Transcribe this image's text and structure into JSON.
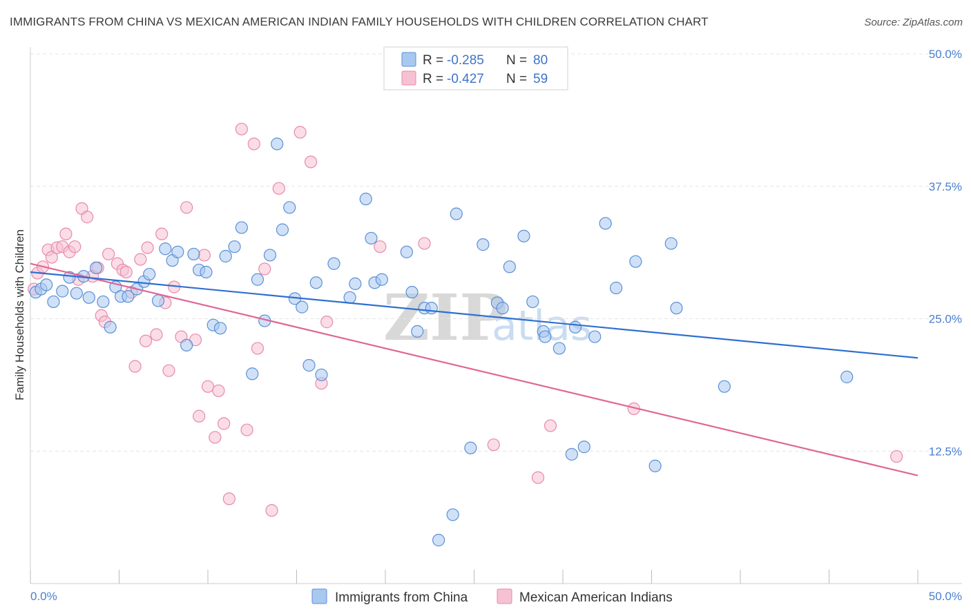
{
  "title": "IMMIGRANTS FROM CHINA VS MEXICAN AMERICAN INDIAN FAMILY HOUSEHOLDS WITH CHILDREN CORRELATION CHART",
  "source": "Source: ZipAtlas.com",
  "watermark": {
    "zip": "ZIP",
    "atlas": "atlas"
  },
  "legend": {
    "rows": [
      {
        "r_label": "R =",
        "r_value": "-0.285",
        "n_label": "N =",
        "n_value": "80"
      },
      {
        "r_label": "R =",
        "r_value": "-0.427",
        "n_label": "N =",
        "n_value": "59"
      }
    ]
  },
  "chart_data": {
    "type": "scatter",
    "xlabel": "",
    "ylabel": "Family Households with Children",
    "xlim": [
      0,
      50
    ],
    "ylim": [
      0,
      50
    ],
    "x_tick_labels": [
      "0.0%",
      "50.0%"
    ],
    "y_ticks": [
      12.5,
      25.0,
      37.5,
      50.0
    ],
    "y_tick_labels": [
      "12.5%",
      "25.0%",
      "37.5%",
      "50.0%"
    ],
    "grid": true,
    "colors": {
      "china_fill": "#a9c8f0",
      "china_stroke": "#5a8fd6",
      "china_line": "#2f6fd0",
      "mex_fill": "#f6c1d3",
      "mex_stroke": "#e889a8",
      "mex_line": "#e06594",
      "grid": "#e4e4e4",
      "axis_label": "#4a7fcf"
    },
    "series": [
      {
        "name": "Immigrants from China",
        "r": -0.285,
        "n": 80,
        "trend": {
          "x": [
            0,
            50
          ],
          "y": [
            29.4,
            21.3
          ]
        },
        "points": [
          [
            0.3,
            27.5
          ],
          [
            0.6,
            27.8
          ],
          [
            0.9,
            28.2
          ],
          [
            1.3,
            26.6
          ],
          [
            1.8,
            27.6
          ],
          [
            2.2,
            28.9
          ],
          [
            2.6,
            27.4
          ],
          [
            3.0,
            29.0
          ],
          [
            3.3,
            27.0
          ],
          [
            3.7,
            29.8
          ],
          [
            4.1,
            26.6
          ],
          [
            4.5,
            24.2
          ],
          [
            4.8,
            28.0
          ],
          [
            5.1,
            27.1
          ],
          [
            5.5,
            27.1
          ],
          [
            6.0,
            27.8
          ],
          [
            6.4,
            28.5
          ],
          [
            6.7,
            29.2
          ],
          [
            7.2,
            26.7
          ],
          [
            7.6,
            31.6
          ],
          [
            8.0,
            30.5
          ],
          [
            8.3,
            31.3
          ],
          [
            8.8,
            22.5
          ],
          [
            9.2,
            31.1
          ],
          [
            9.5,
            29.6
          ],
          [
            9.9,
            29.4
          ],
          [
            10.3,
            24.4
          ],
          [
            10.7,
            24.1
          ],
          [
            11.0,
            30.9
          ],
          [
            11.5,
            31.8
          ],
          [
            11.9,
            33.6
          ],
          [
            12.5,
            19.8
          ],
          [
            12.8,
            28.7
          ],
          [
            13.2,
            24.8
          ],
          [
            13.5,
            31.0
          ],
          [
            13.9,
            41.5
          ],
          [
            14.2,
            33.4
          ],
          [
            14.6,
            35.5
          ],
          [
            14.9,
            26.9
          ],
          [
            15.3,
            26.1
          ],
          [
            15.7,
            20.6
          ],
          [
            16.1,
            28.4
          ],
          [
            16.4,
            19.7
          ],
          [
            17.1,
            30.2
          ],
          [
            18.0,
            27.0
          ],
          [
            18.3,
            28.3
          ],
          [
            18.9,
            36.3
          ],
          [
            19.2,
            32.6
          ],
          [
            19.4,
            28.4
          ],
          [
            19.8,
            28.7
          ],
          [
            21.2,
            31.3
          ],
          [
            21.5,
            27.5
          ],
          [
            21.8,
            23.8
          ],
          [
            22.2,
            26.0
          ],
          [
            22.6,
            26.0
          ],
          [
            23.0,
            4.1
          ],
          [
            23.8,
            6.5
          ],
          [
            24.0,
            34.9
          ],
          [
            24.8,
            12.8
          ],
          [
            25.5,
            32.0
          ],
          [
            26.3,
            26.5
          ],
          [
            26.6,
            26.0
          ],
          [
            27.0,
            29.9
          ],
          [
            27.8,
            32.8
          ],
          [
            28.3,
            26.6
          ],
          [
            28.9,
            23.8
          ],
          [
            29.0,
            23.3
          ],
          [
            29.8,
            22.2
          ],
          [
            30.5,
            12.2
          ],
          [
            30.7,
            24.2
          ],
          [
            31.2,
            12.9
          ],
          [
            31.8,
            23.3
          ],
          [
            32.4,
            34.0
          ],
          [
            33.0,
            27.9
          ],
          [
            34.1,
            30.4
          ],
          [
            35.2,
            11.1
          ],
          [
            36.1,
            32.1
          ],
          [
            36.4,
            26.0
          ],
          [
            39.1,
            18.6
          ],
          [
            46.0,
            19.5
          ]
        ]
      },
      {
        "name": "Mexican American Indians",
        "r": -0.427,
        "n": 59,
        "trend": {
          "x": [
            0,
            50
          ],
          "y": [
            30.2,
            10.2
          ]
        },
        "points": [
          [
            0.2,
            27.8
          ],
          [
            0.4,
            29.3
          ],
          [
            0.7,
            29.9
          ],
          [
            1.0,
            31.5
          ],
          [
            1.2,
            30.8
          ],
          [
            1.5,
            31.7
          ],
          [
            1.8,
            31.8
          ],
          [
            2.0,
            33.0
          ],
          [
            2.2,
            31.3
          ],
          [
            2.5,
            31.8
          ],
          [
            2.7,
            28.7
          ],
          [
            2.9,
            35.4
          ],
          [
            3.2,
            34.6
          ],
          [
            3.5,
            29.0
          ],
          [
            3.8,
            29.8
          ],
          [
            4.0,
            25.3
          ],
          [
            4.2,
            24.7
          ],
          [
            4.4,
            31.1
          ],
          [
            4.9,
            30.2
          ],
          [
            5.2,
            29.6
          ],
          [
            5.4,
            29.4
          ],
          [
            5.7,
            27.5
          ],
          [
            5.9,
            20.5
          ],
          [
            6.2,
            30.6
          ],
          [
            6.5,
            22.9
          ],
          [
            6.6,
            31.7
          ],
          [
            7.1,
            23.5
          ],
          [
            7.4,
            33.0
          ],
          [
            7.6,
            26.5
          ],
          [
            7.8,
            20.1
          ],
          [
            8.1,
            28.0
          ],
          [
            8.5,
            23.3
          ],
          [
            8.8,
            35.5
          ],
          [
            9.3,
            23.0
          ],
          [
            9.5,
            15.8
          ],
          [
            9.8,
            31.0
          ],
          [
            10.0,
            18.6
          ],
          [
            10.4,
            13.8
          ],
          [
            10.6,
            18.2
          ],
          [
            10.9,
            15.1
          ],
          [
            11.2,
            8.0
          ],
          [
            11.9,
            42.9
          ],
          [
            12.2,
            14.5
          ],
          [
            12.6,
            41.5
          ],
          [
            12.8,
            22.2
          ],
          [
            13.2,
            29.7
          ],
          [
            13.6,
            6.9
          ],
          [
            14.0,
            37.3
          ],
          [
            15.2,
            42.6
          ],
          [
            15.8,
            39.8
          ],
          [
            16.4,
            18.9
          ],
          [
            16.7,
            24.7
          ],
          [
            19.7,
            31.8
          ],
          [
            22.2,
            32.1
          ],
          [
            26.1,
            13.1
          ],
          [
            28.6,
            10.0
          ],
          [
            29.3,
            14.9
          ],
          [
            34.0,
            16.5
          ],
          [
            48.8,
            12.0
          ]
        ]
      }
    ]
  }
}
